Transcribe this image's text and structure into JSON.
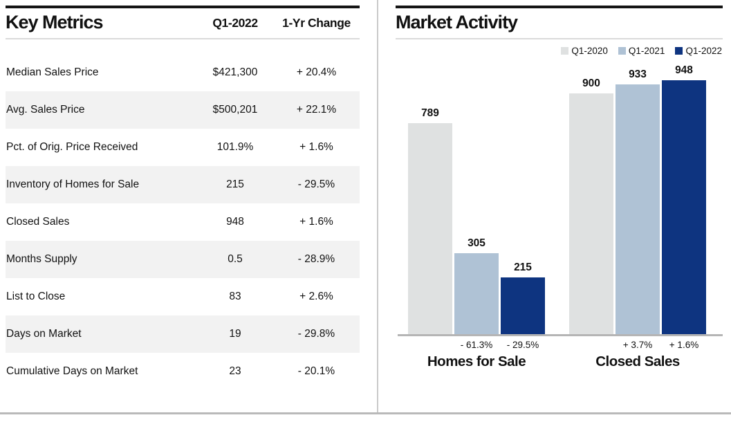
{
  "key_metrics": {
    "title": "Key Metrics",
    "columns": {
      "period": "Q1-2022",
      "change": "1-Yr Change"
    },
    "rows": [
      {
        "label": "Median Sales Price",
        "value": "$421,300",
        "change": "+ 20.4%"
      },
      {
        "label": "Avg. Sales Price",
        "value": "$500,201",
        "change": "+ 22.1%"
      },
      {
        "label": "Pct. of Orig. Price Received",
        "value": "101.9%",
        "change": "+ 1.6%"
      },
      {
        "label": "Inventory of Homes for Sale",
        "value": "215",
        "change": "- 29.5%"
      },
      {
        "label": "Closed Sales",
        "value": "948",
        "change": "+ 1.6%"
      },
      {
        "label": "Months Supply",
        "value": "0.5",
        "change": "- 28.9%"
      },
      {
        "label": "List to Close",
        "value": "83",
        "change": "+ 2.6%"
      },
      {
        "label": "Days on Market",
        "value": "19",
        "change": "- 29.8%"
      },
      {
        "label": "Cumulative Days on Market",
        "value": "23",
        "change": "- 20.1%"
      }
    ]
  },
  "market_activity": {
    "title": "Market Activity",
    "legend": [
      {
        "label": "Q1-2020",
        "color": "#dfe1e1"
      },
      {
        "label": "Q1-2021",
        "color": "#afc2d5"
      },
      {
        "label": "Q1-2022",
        "color": "#0e3480"
      }
    ]
  },
  "chart_data": {
    "type": "bar",
    "categories": [
      "Homes for Sale",
      "Closed Sales"
    ],
    "series": [
      {
        "name": "Q1-2020",
        "color": "#dfe1e1",
        "values": [
          789,
          900
        ]
      },
      {
        "name": "Q1-2021",
        "color": "#afc2d5",
        "values": [
          305,
          933
        ]
      },
      {
        "name": "Q1-2022",
        "color": "#0e3480",
        "values": [
          215,
          948
        ]
      }
    ],
    "change_labels": [
      {
        "series": "Q1-2021",
        "category": "Homes for Sale",
        "text": "- 61.3%"
      },
      {
        "series": "Q1-2022",
        "category": "Homes for Sale",
        "text": "- 29.5%"
      },
      {
        "series": "Q1-2021",
        "category": "Closed Sales",
        "text": "+ 3.7%"
      },
      {
        "series": "Q1-2022",
        "category": "Closed Sales",
        "text": "+ 1.6%"
      }
    ],
    "title": "Market Activity",
    "xlabel": "",
    "ylabel": "",
    "ylim": [
      0,
      975
    ],
    "grid": false,
    "legend_position": "top-right",
    "value_labels": true
  }
}
